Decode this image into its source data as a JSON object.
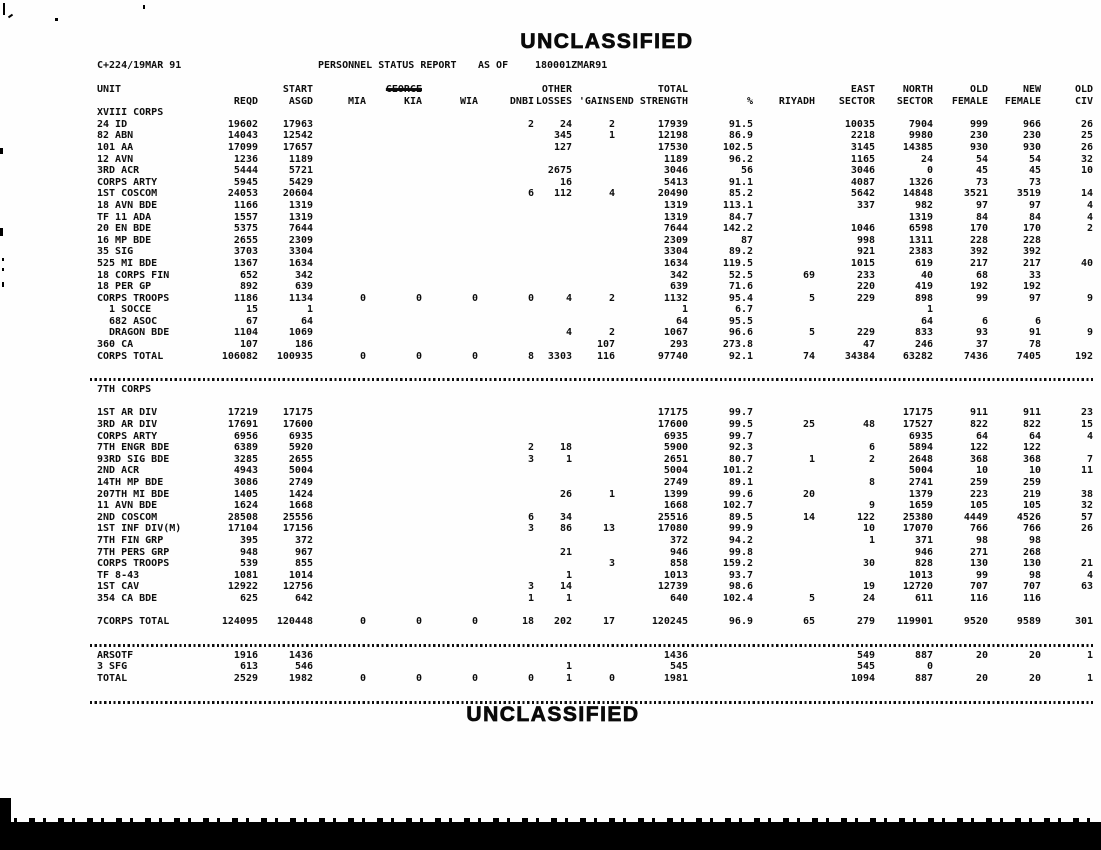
{
  "page": {
    "top_banner": "UNCLASSIFIED",
    "bottom_banner": "UNCLASSIFIED",
    "doc_date": "C+224/19MAR 91",
    "report_title": "PERSONNEL STATUS REPORT",
    "as_of_label": "AS OF",
    "as_of_value": "180001ZMAR91"
  },
  "table": {
    "header_row1": [
      "UNIT",
      "",
      "START",
      "",
      "GEORGE",
      "",
      "",
      "OTHER",
      "",
      "TOTAL",
      "",
      "",
      "EAST",
      "NORTH",
      "OLD",
      "NEW",
      "OLD"
    ],
    "header_row2": [
      "",
      "REQD",
      "ASGD",
      "MIA",
      "KIA",
      "WIA",
      "DNBI",
      "LOSSES",
      "'GAINS",
      "END STRENGTH",
      "%",
      "RIYADH",
      "SECTOR",
      "SECTOR",
      "FEMALE",
      "FEMALE",
      "CIV"
    ],
    "struck_header_index": 4,
    "sections": [
      {
        "label": "XVIII CORPS",
        "sep_after": true,
        "rows": [
          [
            "24 ID",
            "19602",
            "17963",
            "",
            "",
            "",
            "2",
            "24",
            "2",
            "17939",
            "91.5",
            "",
            "10035",
            "7904",
            "999",
            "966",
            "26"
          ],
          [
            "82 ABN",
            "14043",
            "12542",
            "",
            "",
            "",
            "",
            "345",
            "1",
            "12198",
            "86.9",
            "",
            "2218",
            "9980",
            "230",
            "230",
            "25"
          ],
          [
            "101 AA",
            "17099",
            "17657",
            "",
            "",
            "",
            "",
            "127",
            "",
            "17530",
            "102.5",
            "",
            "3145",
            "14385",
            "930",
            "930",
            "26"
          ],
          [
            "12 AVN",
            "1236",
            "1189",
            "",
            "",
            "",
            "",
            "",
            "",
            "1189",
            "96.2",
            "",
            "1165",
            "24",
            "54",
            "54",
            "32"
          ],
          [
            "3RD ACR",
            "5444",
            "5721",
            "",
            "",
            "",
            "",
            "2675",
            "",
            "3046",
            "56",
            "",
            "3046",
            "0",
            "45",
            "45",
            "10"
          ],
          [
            "CORPS ARTY",
            "5945",
            "5429",
            "",
            "",
            "",
            "",
            "16",
            "",
            "5413",
            "91.1",
            "",
            "4087",
            "1326",
            "73",
            "73",
            ""
          ],
          [
            "1ST COSCOM",
            "24053",
            "20604",
            "",
            "",
            "",
            "6",
            "112",
            "4",
            "20490",
            "85.2",
            "",
            "5642",
            "14848",
            "3521",
            "3519",
            "14"
          ],
          [
            "18 AVN BDE",
            "1166",
            "1319",
            "",
            "",
            "",
            "",
            "",
            "",
            "1319",
            "113.1",
            "",
            "337",
            "982",
            "97",
            "97",
            "4"
          ],
          [
            "TF 11 ADA",
            "1557",
            "1319",
            "",
            "",
            "",
            "",
            "",
            "",
            "1319",
            "84.7",
            "",
            "",
            "1319",
            "84",
            "84",
            "4"
          ],
          [
            "20 EN BDE",
            "5375",
            "7644",
            "",
            "",
            "",
            "",
            "",
            "",
            "7644",
            "142.2",
            "",
            "1046",
            "6598",
            "170",
            "170",
            "2"
          ],
          [
            "16 MP BDE",
            "2655",
            "2309",
            "",
            "",
            "",
            "",
            "",
            "",
            "2309",
            "87",
            "",
            "998",
            "1311",
            "228",
            "228",
            ""
          ],
          [
            "35 SIG",
            "3703",
            "3304",
            "",
            "",
            "",
            "",
            "",
            "",
            "3304",
            "89.2",
            "",
            "921",
            "2383",
            "392",
            "392",
            ""
          ],
          [
            "525 MI BDE",
            "1367",
            "1634",
            "",
            "",
            "",
            "",
            "",
            "",
            "1634",
            "119.5",
            "",
            "1015",
            "619",
            "217",
            "217",
            "40"
          ],
          [
            "18 CORPS FIN",
            "652",
            "342",
            "",
            "",
            "",
            "",
            "",
            "",
            "342",
            "52.5",
            "69",
            "233",
            "40",
            "68",
            "33",
            ""
          ],
          [
            "18 PER GP",
            "892",
            "639",
            "",
            "",
            "",
            "",
            "",
            "",
            "639",
            "71.6",
            "",
            "220",
            "419",
            "192",
            "192",
            ""
          ],
          [
            "CORPS TROOPS",
            "1186",
            "1134",
            "0",
            "0",
            "0",
            "0",
            "4",
            "2",
            "1132",
            "95.4",
            "5",
            "229",
            "898",
            "99",
            "97",
            "9"
          ],
          [
            "  1 SOCCE",
            "15",
            "1",
            "",
            "",
            "",
            "",
            "",
            "",
            "1",
            "6.7",
            "",
            "",
            "1",
            "",
            "",
            ""
          ],
          [
            "  682 ASOC",
            "67",
            "64",
            "",
            "",
            "",
            "",
            "",
            "",
            "64",
            "95.5",
            "",
            "",
            "64",
            "6",
            "6",
            ""
          ],
          [
            "  DRAGON BDE",
            "1104",
            "1069",
            "",
            "",
            "",
            "",
            "4",
            "2",
            "1067",
            "96.6",
            "5",
            "229",
            "833",
            "93",
            "91",
            "9"
          ],
          [
            "360 CA",
            "107",
            "186",
            "",
            "",
            "",
            "",
            "",
            "107",
            "293",
            "273.8",
            "",
            "47",
            "246",
            "37",
            "78",
            ""
          ],
          [
            "CORPS TOTAL",
            "106082",
            "100935",
            "0",
            "0",
            "0",
            "8",
            "3303",
            "116",
            "97740",
            "92.1",
            "74",
            "34384",
            "63282",
            "7436",
            "7405",
            "192"
          ]
        ]
      },
      {
        "label": "7TH CORPS",
        "sep_after": true,
        "rows": [
          [
            ""
          ],
          [
            "1ST AR DIV",
            "17219",
            "17175",
            "",
            "",
            "",
            "",
            "",
            "",
            "17175",
            "99.7",
            "",
            "",
            "17175",
            "911",
            "911",
            "23"
          ],
          [
            "3RD AR DIV",
            "17691",
            "17600",
            "",
            "",
            "",
            "",
            "",
            "",
            "17600",
            "99.5",
            "25",
            "48",
            "17527",
            "822",
            "822",
            "15"
          ],
          [
            "CORPS ARTY",
            "6956",
            "6935",
            "",
            "",
            "",
            "",
            "",
            "",
            "6935",
            "99.7",
            "",
            "",
            "6935",
            "64",
            "64",
            "4"
          ],
          [
            "7TH ENGR BDE",
            "6389",
            "5920",
            "",
            "",
            "",
            "2",
            "18",
            "",
            "5900",
            "92.3",
            "",
            "6",
            "5894",
            "122",
            "122",
            ""
          ],
          [
            "93RD SIG BDE",
            "3285",
            "2655",
            "",
            "",
            "",
            "3",
            "1",
            "",
            "2651",
            "80.7",
            "1",
            "2",
            "2648",
            "368",
            "368",
            "7"
          ],
          [
            "2ND ACR",
            "4943",
            "5004",
            "",
            "",
            "",
            "",
            "",
            "",
            "5004",
            "101.2",
            "",
            "",
            "5004",
            "10",
            "10",
            "11"
          ],
          [
            "14TH MP BDE",
            "3086",
            "2749",
            "",
            "",
            "",
            "",
            "",
            "",
            "2749",
            "89.1",
            "",
            "8",
            "2741",
            "259",
            "259",
            ""
          ],
          [
            "207TH MI BDE",
            "1405",
            "1424",
            "",
            "",
            "",
            "",
            "26",
            "1",
            "1399",
            "99.6",
            "20",
            "",
            "1379",
            "223",
            "219",
            "38"
          ],
          [
            "11 AVN BDE",
            "1624",
            "1668",
            "",
            "",
            "",
            "",
            "",
            "",
            "1668",
            "102.7",
            "",
            "9",
            "1659",
            "105",
            "105",
            "32"
          ],
          [
            "2ND COSCOM",
            "28508",
            "25556",
            "",
            "",
            "",
            "6",
            "34",
            "",
            "25516",
            "89.5",
            "14",
            "122",
            "25380",
            "4449",
            "4526",
            "57"
          ],
          [
            "1ST INF DIV(M)",
            "17104",
            "17156",
            "",
            "",
            "",
            "3",
            "86",
            "13",
            "17080",
            "99.9",
            "",
            "10",
            "17070",
            "766",
            "766",
            "26"
          ],
          [
            "7TH FIN GRP",
            "395",
            "372",
            "",
            "",
            "",
            "",
            "",
            "",
            "372",
            "94.2",
            "",
            "1",
            "371",
            "98",
            "98",
            ""
          ],
          [
            "7TH PERS GRP",
            "948",
            "967",
            "",
            "",
            "",
            "",
            "21",
            "",
            "946",
            "99.8",
            "",
            "",
            "946",
            "271",
            "268",
            ""
          ],
          [
            "CORPS TROOPS",
            "539",
            "855",
            "",
            "",
            "",
            "",
            "",
            "3",
            "858",
            "159.2",
            "",
            "30",
            "828",
            "130",
            "130",
            "21"
          ],
          [
            "TF 8-43",
            "1081",
            "1014",
            "",
            "",
            "",
            "",
            "1",
            "",
            "1013",
            "93.7",
            "",
            "",
            "1013",
            "99",
            "98",
            "4"
          ],
          [
            "1ST CAV",
            "12922",
            "12756",
            "",
            "",
            "",
            "3",
            "14",
            "",
            "12739",
            "98.6",
            "",
            "19",
            "12720",
            "707",
            "707",
            "63"
          ],
          [
            "354 CA BDE",
            "625",
            "642",
            "",
            "",
            "",
            "1",
            "1",
            "",
            "640",
            "102.4",
            "5",
            "24",
            "611",
            "116",
            "116",
            ""
          ],
          [
            ""
          ],
          [
            "7CORPS TOTAL",
            "124095",
            "120448",
            "0",
            "0",
            "0",
            "18",
            "202",
            "17",
            "120245",
            "96.9",
            "65",
            "279",
            "119901",
            "9520",
            "9589",
            "301"
          ]
        ]
      },
      {
        "label": null,
        "sep_after": true,
        "rows": [
          [
            "ARSOTF",
            "1916",
            "1436",
            "",
            "",
            "",
            "",
            "",
            "",
            "1436",
            "",
            "",
            "549",
            "887",
            "20",
            "20",
            "1"
          ],
          [
            "3 SFG",
            "613",
            "546",
            "",
            "",
            "",
            "",
            "1",
            "",
            "545",
            "",
            "",
            "545",
            "0",
            "",
            "",
            ""
          ],
          [
            "TOTAL",
            "2529",
            "1982",
            "0",
            "0",
            "0",
            "0",
            "1",
            "0",
            "1981",
            "",
            "",
            "1094",
            "887",
            "20",
            "20",
            "1"
          ]
        ]
      }
    ]
  },
  "colors": {
    "ink": "#0d0d0d",
    "paper": "#fefefe",
    "redaction_bar": "#000000"
  }
}
